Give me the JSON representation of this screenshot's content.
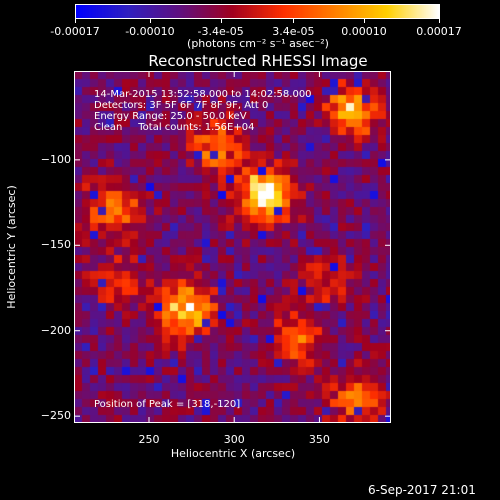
{
  "colorbar": {
    "tick_labels": [
      "-0.00017",
      "-0.00010",
      "-3.4e-05",
      "3.4e-05",
      "0.00010",
      "0.00017"
    ],
    "tick_values": [
      -0.00017,
      -0.0001,
      -3.4e-05,
      3.4e-05,
      0.0001,
      0.00017
    ],
    "units_label": "(photons cm⁻² s⁻¹ asec⁻²)",
    "range": [
      -0.00017,
      0.00017
    ],
    "colormap_stops": [
      "#0000ff",
      "#3020c0",
      "#601080",
      "#a00020",
      "#ff3000",
      "#ff8000",
      "#ffd000",
      "#ffffff"
    ]
  },
  "chart_data": {
    "type": "heatmap",
    "title": "Reconstructed RHESSI Image",
    "xlabel": "Heliocentric X (arcsec)",
    "ylabel": "Heliocentric Y (arcsec)",
    "xlim": [
      206,
      392
    ],
    "ylim": [
      -254,
      -48
    ],
    "x_ticks": [
      250,
      300,
      350
    ],
    "y_ticks": [
      -100,
      -150,
      -200,
      -250
    ],
    "peak": [
      318,
      -120
    ],
    "bright_sources": [
      {
        "x": 318,
        "y": -120,
        "level": 1.0
      },
      {
        "x": 272,
        "y": -188,
        "level": 0.8
      },
      {
        "x": 370,
        "y": -70,
        "level": 0.7
      },
      {
        "x": 228,
        "y": -128,
        "level": 0.55
      },
      {
        "x": 290,
        "y": -92,
        "level": 0.5
      },
      {
        "x": 336,
        "y": -205,
        "level": 0.45
      },
      {
        "x": 372,
        "y": -240,
        "level": 0.5
      },
      {
        "x": 232,
        "y": -172,
        "level": 0.35
      },
      {
        "x": 355,
        "y": -170,
        "level": 0.3
      }
    ]
  },
  "annotations": {
    "line1": "14-Mar-2015 13:52:58.000 to 14:02:58.000",
    "line2": "Detectors: 3F 5F 6F 7F 8F 9F, Att 0",
    "line3": "Energy Range: 25.0 - 50.0 keV",
    "line4": "Clean     Total counts: 1.56E+04",
    "peak_text": "Position of Peak = [318,-120]"
  },
  "footer": {
    "timestamp": "6-Sep-2017 21:01"
  }
}
